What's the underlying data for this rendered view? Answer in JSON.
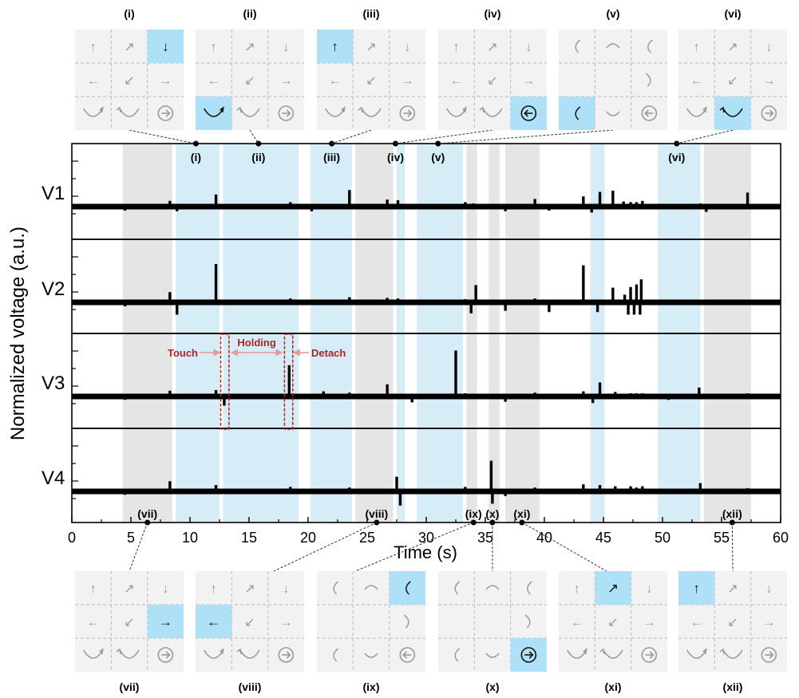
{
  "chart_data": {
    "type": "line",
    "xlabel": "Time (s)",
    "ylabel": "Normalized voltage (a.u.)",
    "xlim": [
      0,
      60
    ],
    "xticks": [
      0,
      5,
      10,
      15,
      20,
      25,
      30,
      35,
      40,
      45,
      50,
      55,
      60
    ],
    "series": [
      {
        "name": "V1",
        "spikes": [
          [
            4.5,
            -0.5
          ],
          [
            8.3,
            0.9
          ],
          [
            8.9,
            -0.6
          ],
          [
            12.2,
            1.9
          ],
          [
            18.5,
            0.7
          ],
          [
            20.3,
            -0.6
          ],
          [
            23.5,
            2.6
          ],
          [
            26.7,
            1.1
          ],
          [
            27.6,
            1.0
          ],
          [
            33.3,
            0.7
          ],
          [
            34.0,
            0.5
          ],
          [
            36.7,
            -0.6
          ],
          [
            39.2,
            1.2
          ],
          [
            40.4,
            -0.5
          ],
          [
            43.3,
            1.6
          ],
          [
            44.0,
            -0.8
          ],
          [
            44.7,
            2.3
          ],
          [
            45.8,
            2.5
          ],
          [
            46.7,
            0.8
          ],
          [
            47.3,
            0.7
          ],
          [
            47.8,
            0.7
          ],
          [
            48.3,
            0.9
          ],
          [
            53.2,
            0.5
          ],
          [
            53.7,
            -0.7
          ],
          [
            57.2,
            2.2
          ]
        ]
      },
      {
        "name": "V2",
        "spikes": [
          [
            4.5,
            -0.5
          ],
          [
            8.3,
            1.6
          ],
          [
            8.9,
            -1.8
          ],
          [
            12.2,
            6.0
          ],
          [
            18.5,
            0.6
          ],
          [
            23.5,
            0.8
          ],
          [
            26.7,
            0.7
          ],
          [
            27.6,
            0.6
          ],
          [
            33.3,
            0.5
          ],
          [
            33.8,
            -1.6
          ],
          [
            34.2,
            2.7
          ],
          [
            36.7,
            -1.2
          ],
          [
            39.2,
            0.6
          ],
          [
            40.4,
            -1.4
          ],
          [
            43.3,
            5.8
          ],
          [
            44.5,
            -1.4
          ],
          [
            45.8,
            2.3
          ],
          [
            46.8,
            1.2
          ],
          [
            47.3,
            2.4
          ],
          [
            47.8,
            2.8
          ],
          [
            48.2,
            3.6
          ],
          [
            47.1,
            -1.8
          ],
          [
            47.6,
            -1.8
          ],
          [
            48.1,
            -1.8
          ],
          [
            53.2,
            0.4
          ],
          [
            57.2,
            0.4
          ]
        ]
      },
      {
        "name": "V3",
        "spikes": [
          [
            4.5,
            -0.4
          ],
          [
            8.3,
            0.9
          ],
          [
            12.2,
            1.0
          ],
          [
            12.9,
            -1.3
          ],
          [
            18.4,
            4.9
          ],
          [
            21.3,
            0.8
          ],
          [
            23.5,
            0.6
          ],
          [
            26.7,
            1.9
          ],
          [
            28.8,
            -0.8
          ],
          [
            32.5,
            7.2
          ],
          [
            33.3,
            0.5
          ],
          [
            36.7,
            -0.7
          ],
          [
            39.2,
            0.6
          ],
          [
            43.3,
            0.8
          ],
          [
            44.1,
            -0.9
          ],
          [
            44.7,
            2.2
          ],
          [
            46.0,
            0.7
          ],
          [
            47.3,
            0.5
          ],
          [
            47.8,
            0.5
          ],
          [
            48.3,
            0.5
          ],
          [
            50.5,
            -0.4
          ],
          [
            53.1,
            1.4
          ],
          [
            57.2,
            0.5
          ]
        ]
      },
      {
        "name": "V4",
        "spikes": [
          [
            4.5,
            -0.4
          ],
          [
            8.3,
            1.6
          ],
          [
            12.2,
            1.0
          ],
          [
            18.5,
            0.7
          ],
          [
            23.5,
            0.6
          ],
          [
            27.5,
            2.3
          ],
          [
            27.8,
            -2.1
          ],
          [
            33.3,
            0.7
          ],
          [
            35.5,
            4.8
          ],
          [
            35.6,
            -1.8
          ],
          [
            36.7,
            -0.6
          ],
          [
            39.2,
            0.6
          ],
          [
            43.3,
            1.1
          ],
          [
            44.7,
            1.0
          ],
          [
            46.0,
            0.8
          ],
          [
            47.3,
            0.8
          ],
          [
            47.8,
            0.6
          ],
          [
            48.3,
            0.8
          ],
          [
            53.2,
            1.3
          ],
          [
            57.2,
            0.5
          ]
        ]
      }
    ],
    "shaded_regions": [
      {
        "from": 4.3,
        "to": 8.5,
        "color": "#e5e5e5"
      },
      {
        "from": 8.8,
        "to": 12.5,
        "color": "#d6ecf7"
      },
      {
        "from": 12.8,
        "to": 19.2,
        "color": "#d6ecf7"
      },
      {
        "from": 20.2,
        "to": 23.7,
        "color": "#d6ecf7"
      },
      {
        "from": 24.0,
        "to": 27.2,
        "color": "#e5e5e5"
      },
      {
        "from": 27.5,
        "to": 28.2,
        "color": "#d6ecf7"
      },
      {
        "from": 29.2,
        "to": 33.1,
        "color": "#d6ecf7"
      },
      {
        "from": 33.4,
        "to": 34.3,
        "color": "#e5e5e5"
      },
      {
        "from": 35.3,
        "to": 36.2,
        "color": "#e5e5e5"
      },
      {
        "from": 36.7,
        "to": 39.6,
        "color": "#e5e5e5"
      },
      {
        "from": 43.9,
        "to": 45.1,
        "color": "#d6ecf7"
      },
      {
        "from": 49.6,
        "to": 53.2,
        "color": "#d6ecf7"
      },
      {
        "from": 53.5,
        "to": 57.5,
        "color": "#e5e5e5"
      }
    ],
    "top_markers": [
      {
        "label": "(i)",
        "t": 10.5
      },
      {
        "label": "(ii)",
        "t": 15.8
      },
      {
        "label": "(iii)",
        "t": 22.0
      },
      {
        "label": "(iv)",
        "t": 27.4
      },
      {
        "label": "(v)",
        "t": 31.0
      },
      {
        "label": "(vi)",
        "t": 51.2
      }
    ],
    "bottom_markers": [
      {
        "label": "(vii)",
        "t": 6.4
      },
      {
        "label": "(viii)",
        "t": 25.8
      },
      {
        "label": "(ix)",
        "t": 34.0
      },
      {
        "label": "(x)",
        "t": 35.6
      },
      {
        "label": "(xi)",
        "t": 38.1
      },
      {
        "label": "(xii)",
        "t": 55.9
      }
    ],
    "annotations": {
      "touch": "Touch",
      "holding": "Holding",
      "detach": "Detach",
      "touch_box_t": [
        12.6,
        13.3
      ],
      "detach_box_t": [
        18.0,
        18.7
      ],
      "color": "#b22222"
    },
    "colors": {
      "trace": "#000000",
      "gray_band": "#e5e5e5",
      "blue_band": "#d6ecf7",
      "highlight": "#aee0f7"
    }
  },
  "panels": [
    {
      "label": "(i)",
      "type": "A",
      "highlight": 2,
      "hl_content": "↓",
      "position": "top"
    },
    {
      "label": "(ii)",
      "type": "A",
      "highlight": 6,
      "hl_content": "cw",
      "position": "top"
    },
    {
      "label": "(iii)",
      "type": "A",
      "highlight": 0,
      "hl_content": "↑",
      "position": "top"
    },
    {
      "label": "(iv)",
      "type": "A",
      "highlight": 8,
      "hl_content": "circle-left",
      "position": "top"
    },
    {
      "label": "(v)",
      "type": "B",
      "highlight": 6,
      "hl_content": "pinch",
      "position": "top"
    },
    {
      "label": "(vi)",
      "type": "A",
      "highlight": 7,
      "hl_content": "ccw",
      "position": "top"
    },
    {
      "label": "(vii)",
      "type": "A",
      "highlight": 5,
      "hl_content": "→",
      "position": "bottom"
    },
    {
      "label": "(viii)",
      "type": "A",
      "highlight": 3,
      "hl_content": "←",
      "position": "bottom"
    },
    {
      "label": "(ix)",
      "type": "B",
      "highlight": 2,
      "hl_content": "rot",
      "position": "bottom"
    },
    {
      "label": "(x)",
      "type": "B",
      "highlight": 8,
      "hl_content": "circle-right",
      "position": "bottom"
    },
    {
      "label": "(xi)",
      "type": "A",
      "highlight": 1,
      "hl_content": "↗",
      "position": "bottom"
    },
    {
      "label": "(xii)",
      "type": "A",
      "highlight": 0,
      "hl_content": "↑",
      "position": "bottom"
    }
  ]
}
